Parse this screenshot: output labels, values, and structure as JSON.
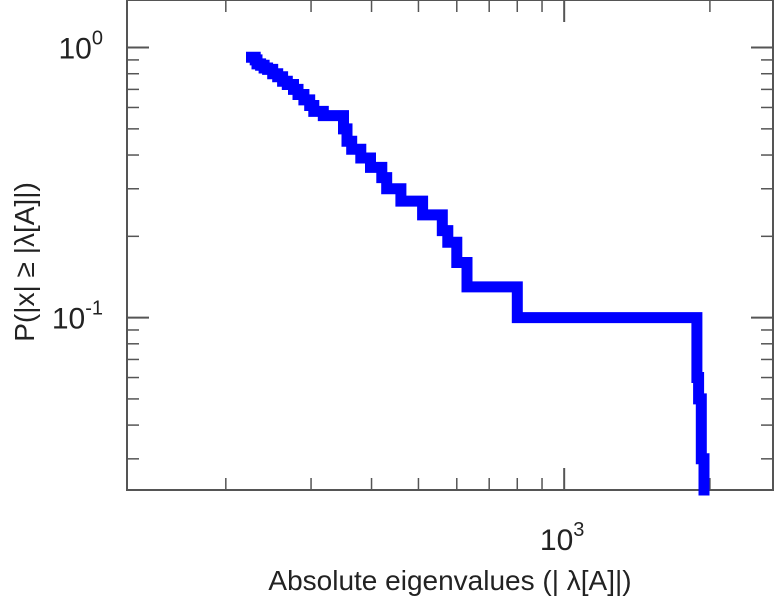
{
  "chart_data": {
    "type": "line",
    "step": true,
    "title": "",
    "xlabel": "Absolute eigenvalues (|     λ[A]|)",
    "ylabel": "P(|x| ≥ |λ[A]|)",
    "xscale": "log",
    "yscale": "log",
    "xlim": [
      125,
      2700
    ],
    "ylim": [
      0.023,
      1.5
    ],
    "grid": false,
    "legend": "none",
    "line_color": "#0000ff",
    "x_ticks": [
      {
        "value": 1000,
        "base": "10",
        "exp": "3"
      }
    ],
    "y_ticks": [
      {
        "value": 1,
        "base": "10",
        "exp": "0"
      },
      {
        "value": 0.1,
        "base": "10",
        "exp": "-1"
      }
    ],
    "series": [
      {
        "x": [
          226,
          230,
          232,
          236,
          240,
          244,
          250,
          256,
          262,
          268,
          276,
          282,
          290,
          298,
          304,
          318,
          335,
          350,
          356,
          364,
          380,
          398,
          420,
          430,
          460,
          510,
          560,
          575,
          600,
          630,
          700,
          800,
          1000,
          1200,
          1600,
          1880,
          1895,
          1920,
          1935,
          1945
        ],
        "y": [
          0.92,
          0.9,
          0.87,
          0.86,
          0.84,
          0.83,
          0.8,
          0.78,
          0.75,
          0.73,
          0.7,
          0.67,
          0.64,
          0.61,
          0.58,
          0.56,
          0.56,
          0.5,
          0.45,
          0.42,
          0.39,
          0.36,
          0.33,
          0.3,
          0.27,
          0.24,
          0.21,
          0.19,
          0.16,
          0.13,
          0.13,
          0.1,
          0.1,
          0.1,
          0.1,
          0.06,
          0.05,
          0.03,
          0.03,
          0.023
        ]
      }
    ]
  }
}
